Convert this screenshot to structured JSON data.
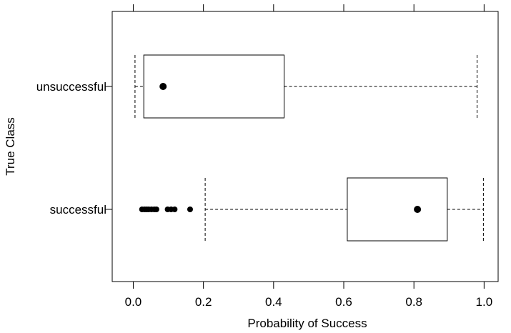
{
  "chart_data": {
    "type": "box",
    "orientation": "horizontal",
    "title": "",
    "xlabel": "Probability of Success",
    "ylabel": "True Class",
    "xlim": [
      -0.06,
      1.04
    ],
    "xticks": [
      0.0,
      0.2,
      0.4,
      0.6,
      0.8,
      1.0
    ],
    "xtick_labels": [
      "0.0",
      "0.2",
      "0.4",
      "0.6",
      "0.8",
      "1.0"
    ],
    "top_ticks": true,
    "grid": false,
    "categories": [
      "unsuccessful",
      "successful"
    ],
    "boxes": [
      {
        "category": "unsuccessful",
        "whisker_low": 0.005,
        "q1": 0.03,
        "median": 0.085,
        "q3": 0.43,
        "whisker_high": 0.98,
        "outliers": []
      },
      {
        "category": "successful",
        "whisker_low": 0.205,
        "q1": 0.61,
        "median": 0.81,
        "q3": 0.895,
        "whisker_high": 0.998,
        "outliers": [
          0.025,
          0.032,
          0.038,
          0.044,
          0.052,
          0.06,
          0.066,
          0.098,
          0.108,
          0.118,
          0.162
        ]
      }
    ],
    "colors": {
      "box_fill": "#ffffff",
      "line": "#000000",
      "marker": "#000000"
    }
  }
}
